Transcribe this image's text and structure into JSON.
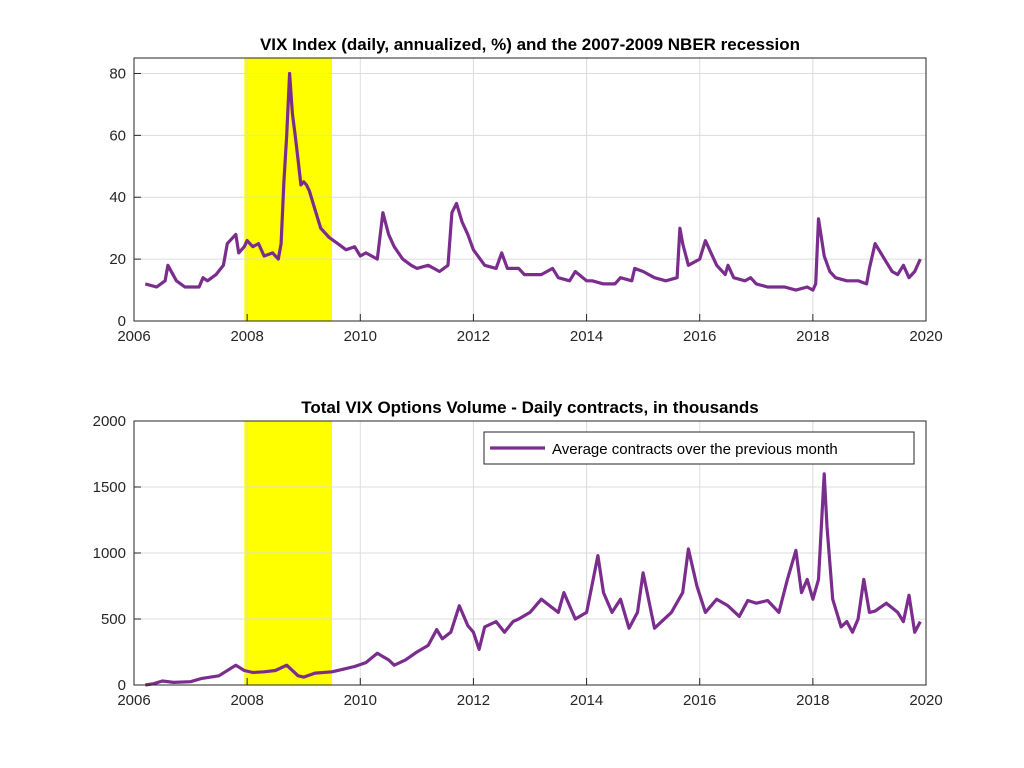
{
  "chart_data": [
    {
      "type": "line",
      "title": "VIX Index (daily, annualized, %) and the 2007-2009 NBER recession",
      "xlabel": "",
      "ylabel": "",
      "xlim": [
        2006,
        2020
      ],
      "ylim": [
        0,
        85
      ],
      "xticks": [
        "2006",
        "2008",
        "2010",
        "2012",
        "2014",
        "2016",
        "2018",
        "2020"
      ],
      "yticks": [
        "0",
        "20",
        "40",
        "60",
        "80"
      ],
      "grid": true,
      "shaded_region": {
        "x0": 2007.95,
        "x1": 2009.5,
        "color": "#ffff00"
      },
      "series": [
        {
          "color": "#7b2d8e",
          "x": [
            2006.2,
            2006.4,
            2006.55,
            2006.6,
            2006.75,
            2006.9,
            2007.0,
            2007.15,
            2007.22,
            2007.3,
            2007.45,
            2007.58,
            2007.65,
            2007.8,
            2007.85,
            2007.95,
            2008.0,
            2008.1,
            2008.2,
            2008.3,
            2008.45,
            2008.55,
            2008.6,
            2008.65,
            2008.7,
            2008.75,
            2008.8,
            2008.85,
            2008.9,
            2008.95,
            2009.0,
            2009.05,
            2009.1,
            2009.2,
            2009.3,
            2009.45,
            2009.6,
            2009.75,
            2009.9,
            2010.0,
            2010.1,
            2010.3,
            2010.4,
            2010.5,
            2010.6,
            2010.75,
            2010.9,
            2011.0,
            2011.2,
            2011.4,
            2011.55,
            2011.62,
            2011.7,
            2011.8,
            2011.9,
            2012.0,
            2012.2,
            2012.4,
            2012.5,
            2012.6,
            2012.8,
            2012.9,
            2013.0,
            2013.2,
            2013.4,
            2013.5,
            2013.7,
            2013.8,
            2014.0,
            2014.1,
            2014.3,
            2014.5,
            2014.6,
            2014.8,
            2014.85,
            2015.0,
            2015.2,
            2015.4,
            2015.6,
            2015.65,
            2015.7,
            2015.8,
            2016.0,
            2016.1,
            2016.2,
            2016.3,
            2016.45,
            2016.5,
            2016.6,
            2016.8,
            2016.9,
            2017.0,
            2017.2,
            2017.3,
            2017.5,
            2017.7,
            2017.9,
            2018.0,
            2018.05,
            2018.1,
            2018.2,
            2018.3,
            2018.4,
            2018.6,
            2018.8,
            2018.95,
            2019.0,
            2019.1,
            2019.3,
            2019.4,
            2019.5,
            2019.6,
            2019.7,
            2019.8,
            2019.9
          ],
          "values": [
            12,
            11,
            13,
            18,
            13,
            11,
            11,
            11,
            14,
            13,
            15,
            18,
            25,
            28,
            22,
            24,
            26,
            24,
            25,
            21,
            22,
            20,
            25,
            45,
            60,
            80,
            67,
            60,
            52,
            44,
            45,
            44,
            42,
            36,
            30,
            27,
            25,
            23,
            24,
            21,
            22,
            20,
            35,
            28,
            24,
            20,
            18,
            17,
            18,
            16,
            18,
            35,
            38,
            32,
            28,
            23,
            18,
            17,
            22,
            17,
            17,
            15,
            15,
            15,
            17,
            14,
            13,
            16,
            13,
            13,
            12,
            12,
            14,
            13,
            17,
            16,
            14,
            13,
            14,
            30,
            25,
            18,
            20,
            26,
            22,
            18,
            15,
            18,
            14,
            13,
            14,
            12,
            11,
            11,
            11,
            10,
            11,
            10,
            12,
            33,
            21,
            16,
            14,
            13,
            13,
            12,
            17,
            25,
            19,
            16,
            15,
            18,
            14,
            16,
            20
          ]
        }
      ]
    },
    {
      "type": "line",
      "title": "Total VIX Options Volume - Daily contracts, in thousands",
      "xlabel": "",
      "ylabel": "",
      "xlim": [
        2006,
        2020
      ],
      "ylim": [
        0,
        2000
      ],
      "xticks": [
        "2006",
        "2008",
        "2010",
        "2012",
        "2014",
        "2016",
        "2018",
        "2020"
      ],
      "yticks": [
        "0",
        "500",
        "1000",
        "1500",
        "2000"
      ],
      "grid": true,
      "legend_position": "top-right",
      "shaded_region": {
        "x0": 2007.95,
        "x1": 2009.5,
        "color": "#ffff00"
      },
      "series": [
        {
          "name": "Average contracts over the previous month",
          "color": "#7b2d8e",
          "x": [
            2006.2,
            2006.35,
            2006.5,
            2006.7,
            2007.0,
            2007.2,
            2007.5,
            2007.8,
            2007.95,
            2008.1,
            2008.3,
            2008.5,
            2008.7,
            2008.9,
            2009.0,
            2009.2,
            2009.5,
            2009.7,
            2009.9,
            2010.1,
            2010.3,
            2010.5,
            2010.6,
            2010.8,
            2011.0,
            2011.2,
            2011.35,
            2011.45,
            2011.6,
            2011.75,
            2011.9,
            2012.0,
            2012.1,
            2012.2,
            2012.4,
            2012.55,
            2012.7,
            2012.8,
            2013.0,
            2013.2,
            2013.35,
            2013.5,
            2013.6,
            2013.8,
            2014.0,
            2014.2,
            2014.3,
            2014.45,
            2014.6,
            2014.75,
            2014.9,
            2015.0,
            2015.2,
            2015.5,
            2015.7,
            2015.8,
            2015.95,
            2016.1,
            2016.3,
            2016.5,
            2016.7,
            2016.85,
            2017.0,
            2017.2,
            2017.4,
            2017.55,
            2017.7,
            2017.8,
            2017.9,
            2018.0,
            2018.1,
            2018.2,
            2018.25,
            2018.35,
            2018.5,
            2018.6,
            2018.7,
            2018.8,
            2018.9,
            2019.0,
            2019.1,
            2019.3,
            2019.5,
            2019.6,
            2019.7,
            2019.8,
            2019.9
          ],
          "values": [
            0,
            10,
            30,
            20,
            25,
            50,
            70,
            150,
            110,
            95,
            100,
            110,
            150,
            70,
            60,
            90,
            100,
            120,
            140,
            170,
            240,
            190,
            150,
            190,
            250,
            300,
            420,
            350,
            400,
            600,
            450,
            400,
            270,
            440,
            480,
            400,
            480,
            500,
            550,
            650,
            600,
            550,
            700,
            500,
            550,
            980,
            700,
            550,
            650,
            430,
            550,
            850,
            430,
            550,
            700,
            1030,
            750,
            550,
            650,
            600,
            520,
            640,
            620,
            640,
            550,
            800,
            1020,
            700,
            800,
            650,
            800,
            1600,
            1200,
            650,
            440,
            480,
            400,
            500,
            800,
            550,
            560,
            620,
            550,
            480,
            680,
            400,
            480
          ]
        }
      ]
    }
  ]
}
